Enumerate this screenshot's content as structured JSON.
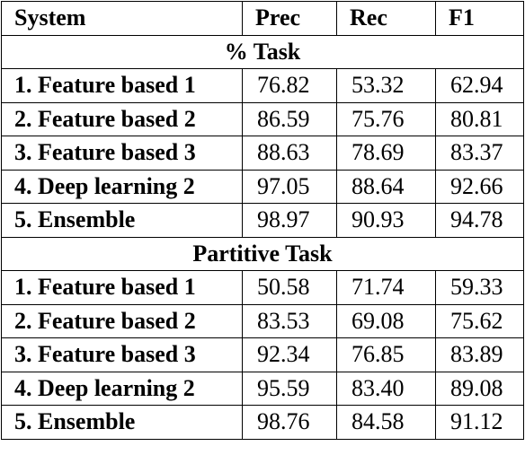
{
  "table": {
    "header": [
      "System",
      "Prec",
      "Rec",
      "F1"
    ],
    "sections": [
      {
        "title": "% Task",
        "rows": [
          [
            "1. Feature based 1",
            "76.82",
            "53.32",
            "62.94"
          ],
          [
            "2. Feature based 2",
            "86.59",
            "75.76",
            "80.81"
          ],
          [
            "3. Feature based 3",
            "88.63",
            "78.69",
            "83.37"
          ],
          [
            "4. Deep learning 2",
            "97.05",
            "88.64",
            "92.66"
          ],
          [
            "5. Ensemble",
            "98.97",
            "90.93",
            "94.78"
          ]
        ]
      },
      {
        "title": "Partitive Task",
        "rows": [
          [
            "1. Feature based 1",
            "50.58",
            "71.74",
            "59.33"
          ],
          [
            "2. Feature based 2",
            "83.53",
            "69.08",
            "75.62"
          ],
          [
            "3. Feature based 3",
            "92.34",
            "76.85",
            "83.89"
          ],
          [
            "4. Deep learning 2",
            "95.59",
            "83.40",
            "89.08"
          ],
          [
            "5. Ensemble",
            "98.76",
            "84.58",
            "91.12"
          ]
        ]
      }
    ]
  }
}
